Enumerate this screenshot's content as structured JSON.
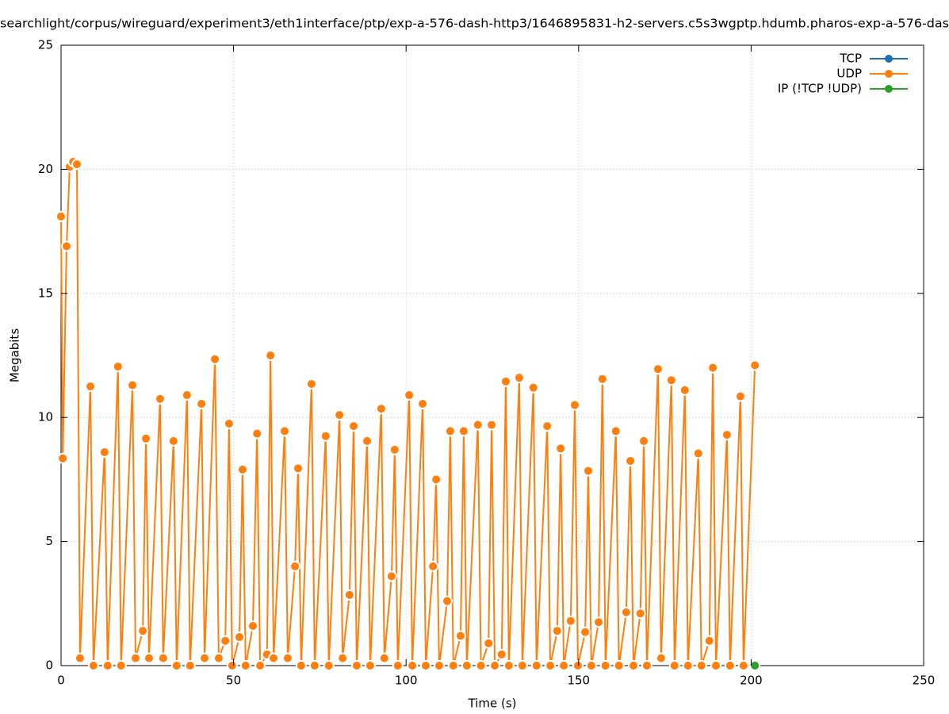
{
  "chart_data": {
    "type": "line",
    "title": "searchlight/corpus/wireguard/experiment3/eth1interface/ptp/exp-a-576-dash-http3/1646895831-h2-servers.c5s3wgptp.hdumb.pharos-exp-a-576-das",
    "xlabel": "Time (s)",
    "ylabel": "Megabits",
    "xlim": [
      0,
      250
    ],
    "xticks": [
      0,
      50,
      100,
      150,
      200,
      250
    ],
    "ylim": [
      0,
      25
    ],
    "yticks": [
      0,
      5,
      10,
      15,
      20,
      25
    ],
    "grid": true,
    "legend": "top-right",
    "series": [
      {
        "name": "TCP",
        "color": "#1f6fb4",
        "x": [],
        "values": []
      },
      {
        "name": "UDP",
        "color": "#ff7f0e",
        "x": [
          0,
          0.5,
          1.6,
          2.5,
          3.5,
          4.6,
          5.5,
          8.5,
          9.4,
          12.6,
          13.5,
          16.5,
          17.4,
          20.7,
          21.6,
          23.7,
          24.6,
          25.5,
          28.7,
          29.6,
          32.6,
          33.5,
          36.5,
          37.4,
          40.7,
          41.6,
          44.6,
          45.7,
          47.6,
          48.7,
          49.6,
          51.7,
          52.6,
          53.5,
          55.6,
          56.8,
          57.7,
          59.7,
          60.7,
          61.6,
          64.8,
          65.7,
          67.8,
          68.7,
          69.6,
          72.6,
          73.5,
          76.7,
          77.6,
          80.7,
          81.6,
          83.6,
          84.8,
          85.7,
          88.7,
          89.6,
          92.8,
          93.7,
          95.8,
          96.7,
          97.6,
          100.9,
          101.8,
          104.8,
          105.7,
          107.8,
          108.7,
          109.6,
          111.9,
          112.8,
          113.7,
          115.8,
          116.7,
          117.6,
          120.8,
          121.7,
          123.9,
          124.8,
          125.7,
          127.7,
          128.9,
          129.8,
          132.8,
          133.7,
          136.9,
          137.8,
          140.9,
          141.8,
          143.8,
          144.8,
          145.7,
          147.7,
          148.9,
          149.8,
          151.9,
          152.8,
          153.7,
          155.8,
          156.9,
          157.8,
          160.8,
          161.7,
          163.8,
          165.0,
          165.9,
          167.9,
          168.9,
          169.8,
          173.0,
          173.9,
          176.9,
          177.8,
          180.8,
          181.7,
          184.7,
          185.6,
          187.9,
          188.9,
          189.8,
          193.0,
          193.9,
          196.9,
          197.8,
          201.1
        ],
        "values": [
          18.1,
          8.35,
          16.9,
          20.1,
          20.3,
          20.2,
          0.3,
          11.25,
          0,
          8.6,
          0,
          12.05,
          0,
          11.3,
          0.3,
          1.4,
          9.15,
          0.3,
          10.75,
          0.3,
          9.05,
          0,
          10.9,
          0,
          10.55,
          0.3,
          12.35,
          0.3,
          1.0,
          9.75,
          0,
          1.15,
          7.9,
          0,
          1.6,
          9.35,
          0,
          0.45,
          12.5,
          0.3,
          9.45,
          0.3,
          4.0,
          7.95,
          0,
          11.35,
          0,
          9.25,
          0,
          10.1,
          0.3,
          2.85,
          9.65,
          0,
          9.05,
          0,
          10.35,
          0.3,
          3.6,
          8.7,
          0,
          10.9,
          0,
          10.55,
          0,
          4.0,
          7.5,
          0,
          2.6,
          9.45,
          0,
          1.2,
          9.45,
          0,
          9.7,
          0,
          0.9,
          9.7,
          0,
          0.45,
          11.45,
          0,
          11.6,
          0,
          11.2,
          0,
          9.65,
          0,
          1.4,
          8.75,
          0,
          1.8,
          10.5,
          0,
          1.35,
          7.85,
          0,
          1.75,
          11.55,
          0,
          9.45,
          0,
          2.15,
          8.25,
          0,
          2.1,
          9.05,
          0,
          11.95,
          0.3,
          11.5,
          0,
          11.1,
          0,
          8.55,
          0,
          1.0,
          12.0,
          0,
          9.3,
          0,
          10.85,
          0,
          12.1
        ]
      },
      {
        "name": "IP (!TCP  !UDP)",
        "color": "#2ca02c",
        "x": [
          201.1
        ],
        "values": [
          0
        ]
      }
    ]
  }
}
